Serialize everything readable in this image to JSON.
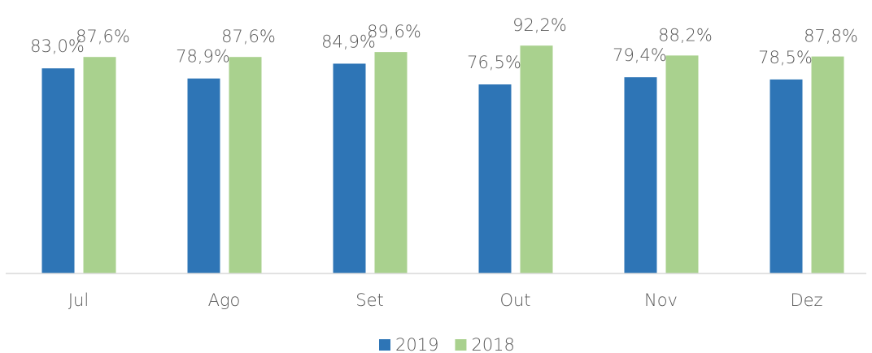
{
  "chart_data": {
    "type": "bar",
    "categories": [
      "Jul",
      "Ago",
      "Set",
      "Out",
      "Nov",
      "Dez"
    ],
    "series": [
      {
        "name": "2019",
        "color": "#2e75b6",
        "values": [
          83.0,
          78.9,
          84.9,
          76.5,
          79.4,
          78.5
        ],
        "value_labels": [
          "83,0%",
          "78,9%",
          "84,9%",
          "76,5%",
          "79,4%",
          "78,5%"
        ]
      },
      {
        "name": "2018",
        "color": "#a9d18e",
        "values": [
          87.6,
          87.6,
          89.6,
          92.2,
          88.2,
          87.8
        ],
        "value_labels": [
          "87,6%",
          "87,6%",
          "89,6%",
          "92,2%",
          "88,2%",
          "87,8%"
        ]
      }
    ],
    "ylim": [
      0,
      110
    ],
    "legend": "bottom"
  }
}
